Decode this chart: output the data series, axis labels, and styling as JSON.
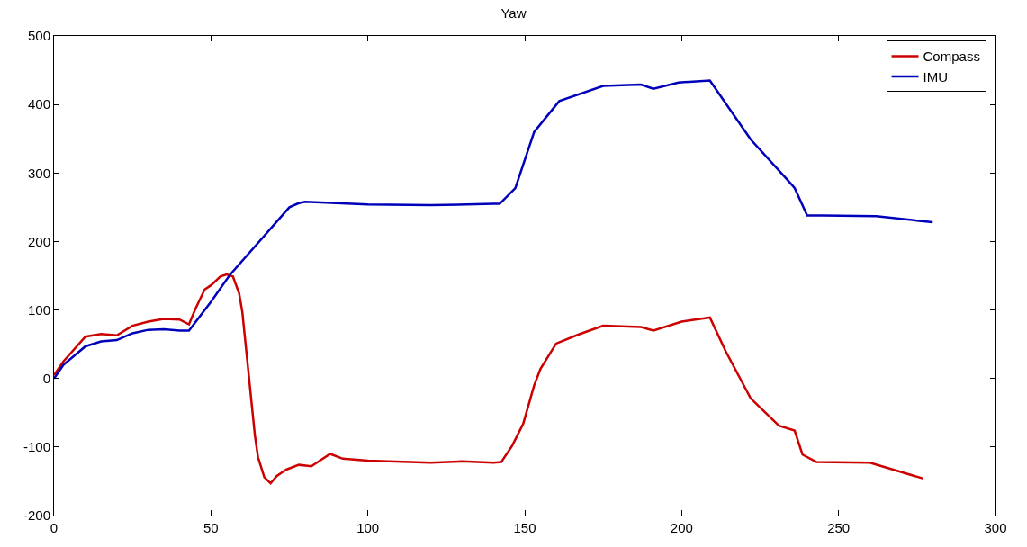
{
  "chart_data": {
    "type": "line",
    "title": "Yaw",
    "xlim": [
      0,
      300
    ],
    "ylim": [
      -200,
      500
    ],
    "xticks": [
      0,
      50,
      100,
      150,
      200,
      250,
      300
    ],
    "yticks": [
      -200,
      -100,
      0,
      100,
      200,
      300,
      400,
      500
    ],
    "legend": "top right",
    "marker": "none",
    "line_style": "solid",
    "series": [
      {
        "name": "Compass",
        "color": "#cc0000",
        "x": [
          0,
          3,
          10,
          15,
          20,
          25,
          30,
          35,
          40,
          43,
          45,
          48,
          50,
          53,
          55,
          57,
          59,
          60,
          61,
          62,
          63,
          64,
          65,
          67,
          69,
          71,
          74,
          78,
          82,
          85,
          88,
          92,
          100,
          120,
          130,
          140,
          142.5,
          146,
          149.5,
          153,
          155,
          160,
          167,
          175,
          187,
          191,
          200,
          209,
          214,
          222,
          231,
          236,
          238.5,
          243,
          260,
          277
        ],
        "values": [
          5,
          25,
          61,
          65,
          63,
          77,
          83,
          87,
          86,
          79,
          101,
          130,
          136,
          149,
          152,
          149,
          124,
          97,
          52,
          7,
          -38,
          -83,
          -115,
          -144,
          -153,
          -142,
          -133,
          -126,
          -128,
          -119,
          -110,
          -117,
          -120,
          -123,
          -121,
          -123,
          -122,
          -98,
          -66,
          -10,
          14,
          51,
          64,
          77,
          75,
          70,
          83,
          89,
          40,
          -29,
          -69,
          -76,
          -111,
          -122,
          -123,
          -146
        ]
      },
      {
        "name": "IMU",
        "color": "#0000bb",
        "x": [
          0,
          3,
          10,
          15,
          20,
          25,
          30,
          35,
          40,
          43,
          50,
          56,
          75,
          78,
          80,
          100,
          120,
          140,
          142,
          147,
          153,
          161,
          175,
          187,
          191,
          199,
          209,
          222,
          233.5,
          236,
          240,
          245,
          262,
          280
        ],
        "values": [
          0,
          20,
          47,
          54,
          56,
          66,
          71,
          72,
          70,
          70,
          112,
          151,
          250,
          256,
          258,
          254,
          253,
          255,
          255,
          278,
          360,
          405,
          427,
          429,
          423,
          432,
          435,
          349,
          291,
          278,
          238,
          238,
          237,
          228
        ]
      }
    ]
  }
}
